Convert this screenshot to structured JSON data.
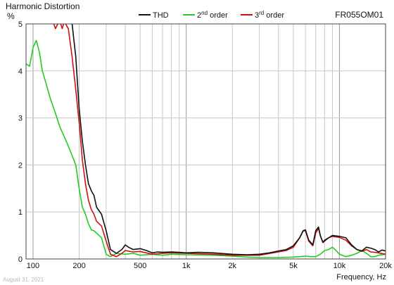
{
  "chart_data": {
    "type": "line",
    "title": "Harmonic Distortion",
    "model": "FR055OM01",
    "ylabel": "%",
    "xlabel": "Frequency, Hz",
    "date": "August 31, 2021",
    "xscale": "log",
    "xlim": [
      90,
      20000
    ],
    "ylim": [
      0,
      5
    ],
    "grid": true,
    "legend_position": "top",
    "x_tick_labels": [
      {
        "value": 100,
        "label": "100"
      },
      {
        "value": 200,
        "label": "200"
      },
      {
        "value": 500,
        "label": "500"
      },
      {
        "value": 1000,
        "label": "1k"
      },
      {
        "value": 2000,
        "label": "2k"
      },
      {
        "value": 5000,
        "label": "5k"
      },
      {
        "value": 10000,
        "label": "10k"
      },
      {
        "value": 20000,
        "label": "20k"
      }
    ],
    "y_ticks": [
      0,
      1,
      2,
      3,
      4,
      5
    ],
    "series": [
      {
        "name": "THD",
        "superscript": "",
        "suffix": "",
        "color": "#111111",
        "x": [
          150,
          160,
          170,
          180,
          190,
          200,
          210,
          220,
          230,
          240,
          250,
          260,
          280,
          300,
          320,
          350,
          380,
          400,
          420,
          450,
          500,
          550,
          600,
          650,
          700,
          800,
          900,
          1000,
          1200,
          1500,
          2000,
          2500,
          3000,
          3500,
          4000,
          4500,
          5000,
          5500,
          5800,
          6000,
          6300,
          6700,
          7000,
          7300,
          7500,
          7800,
          8000,
          8500,
          9000,
          10000,
          11000,
          12000,
          13000,
          14000,
          15000,
          16000,
          17000,
          18000,
          19000,
          20000
        ],
        "y": [
          5.3,
          5.3,
          5.3,
          5.0,
          4.3,
          3.2,
          2.5,
          2.0,
          1.6,
          1.45,
          1.35,
          1.1,
          0.95,
          0.6,
          0.2,
          0.12,
          0.2,
          0.3,
          0.25,
          0.2,
          0.22,
          0.18,
          0.13,
          0.15,
          0.14,
          0.15,
          0.14,
          0.13,
          0.14,
          0.13,
          0.1,
          0.09,
          0.1,
          0.13,
          0.17,
          0.2,
          0.28,
          0.45,
          0.6,
          0.62,
          0.4,
          0.3,
          0.6,
          0.68,
          0.5,
          0.35,
          0.4,
          0.45,
          0.5,
          0.48,
          0.45,
          0.3,
          0.2,
          0.17,
          0.25,
          0.23,
          0.2,
          0.15,
          0.19,
          0.17
        ]
      },
      {
        "name": "2",
        "superscript": "nd",
        "suffix": " order",
        "color": "#22cc22",
        "x": [
          90,
          95,
          100,
          105,
          110,
          115,
          120,
          130,
          140,
          150,
          160,
          170,
          180,
          190,
          200,
          210,
          220,
          230,
          240,
          250,
          260,
          280,
          300,
          320,
          350,
          400,
          450,
          500,
          600,
          700,
          800,
          1000,
          1500,
          2000,
          2500,
          3000,
          4000,
          5000,
          6000,
          6500,
          7000,
          7500,
          8000,
          8500,
          9000,
          9500,
          10000,
          11000,
          12000,
          13000,
          14000,
          15000,
          16000,
          17000,
          18000,
          20000
        ],
        "y": [
          4.15,
          4.1,
          4.5,
          4.65,
          4.4,
          4.0,
          3.8,
          3.4,
          3.1,
          2.8,
          2.6,
          2.4,
          2.2,
          2.0,
          1.5,
          1.1,
          0.95,
          0.75,
          0.62,
          0.6,
          0.55,
          0.45,
          0.1,
          0.05,
          0.12,
          0.1,
          0.12,
          0.08,
          0.1,
          0.08,
          0.1,
          0.09,
          0.08,
          0.06,
          0.04,
          0.03,
          0.03,
          0.04,
          0.06,
          0.05,
          0.05,
          0.1,
          0.18,
          0.2,
          0.25,
          0.18,
          0.1,
          0.05,
          0.08,
          0.12,
          0.18,
          0.12,
          0.05,
          0.05,
          0.08,
          0.1
        ]
      },
      {
        "name": "3",
        "superscript": "rd",
        "suffix": " order",
        "color": "#cc1111",
        "x": [
          135,
          140,
          145,
          150,
          155,
          160,
          170,
          180,
          190,
          200,
          210,
          220,
          230,
          240,
          250,
          260,
          280,
          300,
          320,
          350,
          380,
          400,
          450,
          500,
          600,
          700,
          800,
          1000,
          1500,
          2000,
          3000,
          4000,
          4500,
          5000,
          5500,
          5800,
          6000,
          6300,
          6700,
          7000,
          7300,
          7500,
          7800,
          8000,
          8500,
          9000,
          10000,
          11000,
          12000,
          13000,
          14000,
          15000,
          16000,
          17000,
          18000,
          20000
        ],
        "y": [
          5.05,
          4.9,
          5.0,
          5.05,
          4.9,
          5.05,
          4.9,
          4.3,
          3.6,
          2.9,
          2.1,
          1.6,
          1.25,
          1.05,
          0.95,
          0.8,
          0.7,
          0.38,
          0.1,
          0.05,
          0.12,
          0.18,
          0.15,
          0.16,
          0.1,
          0.12,
          0.13,
          0.12,
          0.1,
          0.08,
          0.08,
          0.15,
          0.18,
          0.25,
          0.45,
          0.6,
          0.6,
          0.38,
          0.28,
          0.55,
          0.65,
          0.5,
          0.35,
          0.38,
          0.45,
          0.48,
          0.46,
          0.4,
          0.28,
          0.2,
          0.16,
          0.2,
          0.15,
          0.14,
          0.13,
          0.1
        ]
      }
    ]
  }
}
